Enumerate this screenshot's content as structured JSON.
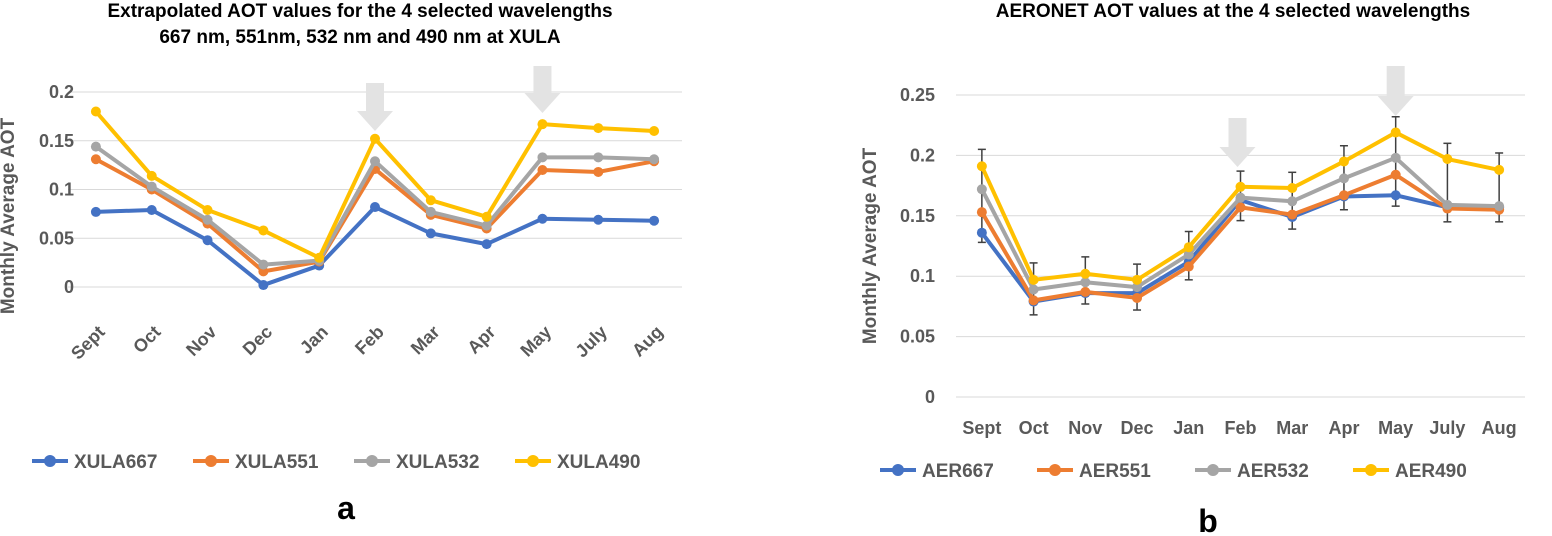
{
  "chart_data": [
    {
      "type": "line",
      "title": [
        "Extrapolated AOT values for the 4 selected wavelengths",
        "667 nm, 551nm, 532 nm and 490 nm  at XULA"
      ],
      "ylabel": "Monthly Average AOT",
      "xlabel": "",
      "ylim": [
        0,
        0.2
      ],
      "yticks": [
        "0",
        "0.05",
        "0.1",
        "0.15",
        "0.2"
      ],
      "categories": [
        "Sept",
        "Oct",
        "Nov",
        "Dec",
        "Jan",
        "Feb",
        "Mar",
        "Apr",
        "May",
        "July",
        "Aug"
      ],
      "series": [
        {
          "name": "XULA667",
          "color": "#4472C4",
          "values": [
            0.077,
            0.079,
            0.048,
            0.002,
            0.022,
            0.082,
            0.055,
            0.044,
            0.07,
            0.069,
            0.068
          ]
        },
        {
          "name": "XULA551",
          "color": "#ED7D31",
          "values": [
            0.131,
            0.1,
            0.065,
            0.016,
            0.026,
            0.121,
            0.074,
            0.06,
            0.12,
            0.118,
            0.129
          ]
        },
        {
          "name": "XULA532",
          "color": "#A5A5A5",
          "values": [
            0.144,
            0.103,
            0.069,
            0.023,
            0.027,
            0.129,
            0.077,
            0.063,
            0.133,
            0.133,
            0.131
          ]
        },
        {
          "name": "XULA490",
          "color": "#FFC000",
          "values": [
            0.18,
            0.114,
            0.079,
            0.058,
            0.03,
            0.152,
            0.089,
            0.072,
            0.167,
            0.163,
            0.16
          ]
        }
      ],
      "arrows_at": [
        "Feb",
        "May"
      ],
      "grid": true,
      "legend": "bottom",
      "panel_label": "a"
    },
    {
      "type": "line",
      "title": [
        "AERONET AOT values at the 4 selected wavelengths"
      ],
      "ylabel": "Monthly Average AOT",
      "xlabel": "",
      "ylim": [
        0,
        0.25
      ],
      "yticks": [
        "0",
        "0.05",
        "0.1",
        "0.15",
        "0.2",
        "0.25"
      ],
      "categories": [
        "Sept",
        "Oct",
        "Nov",
        "Dec",
        "Jan",
        "Feb",
        "Mar",
        "Apr",
        "May",
        "July",
        "Aug"
      ],
      "series": [
        {
          "name": "AER667",
          "color": "#4472C4",
          "values": [
            0.136,
            0.079,
            0.086,
            0.086,
            0.112,
            0.163,
            0.149,
            0.166,
            0.167,
            0.157,
            0.157
          ]
        },
        {
          "name": "AER551",
          "color": "#ED7D31",
          "values": [
            0.153,
            0.08,
            0.087,
            0.082,
            0.108,
            0.157,
            0.151,
            0.167,
            0.184,
            0.156,
            0.155
          ]
        },
        {
          "name": "AER532",
          "color": "#A5A5A5",
          "values": [
            0.172,
            0.089,
            0.095,
            0.091,
            0.118,
            0.165,
            0.162,
            0.181,
            0.198,
            0.159,
            0.158
          ]
        },
        {
          "name": "AER490",
          "color": "#FFC000",
          "values": [
            0.191,
            0.097,
            0.102,
            0.097,
            0.124,
            0.174,
            0.173,
            0.195,
            0.219,
            0.197,
            0.188
          ]
        }
      ],
      "error_bars": {
        "lower": [
          0.128,
          0.068,
          0.077,
          0.072,
          0.097,
          0.146,
          0.139,
          0.155,
          0.158,
          0.145,
          0.145
        ],
        "upper": [
          0.205,
          0.111,
          0.116,
          0.11,
          0.137,
          0.187,
          0.186,
          0.208,
          0.232,
          0.21,
          0.202
        ]
      },
      "arrows_at": [
        "Feb",
        "May"
      ],
      "grid": true,
      "legend": "bottom",
      "panel_label": "b"
    }
  ]
}
